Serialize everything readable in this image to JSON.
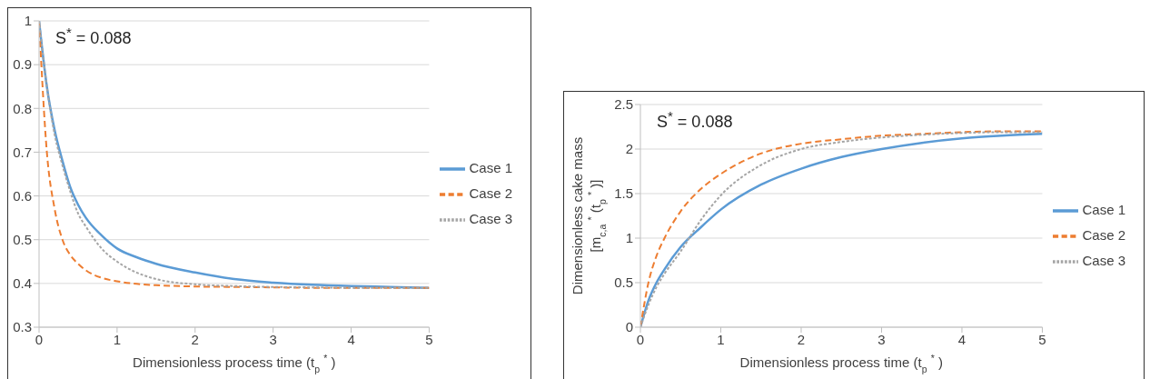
{
  "chart_data": [
    {
      "type": "line",
      "xlabel": "Dimensionless process time (t$_{p}$$^{*}$)",
      "annotations": [
        "S$^{*}$ = 0.088"
      ],
      "x": [
        0,
        0.1,
        0.2,
        0.3,
        0.4,
        0.5,
        0.6,
        0.8,
        1,
        1.25,
        1.5,
        2,
        2.5,
        3,
        3.5,
        4,
        4.5,
        5
      ],
      "series": [
        {
          "name": "Case 1",
          "color": "#5b9bd5",
          "line_style": "solid",
          "values": [
            1,
            0.85,
            0.75,
            0.68,
            0.62,
            0.58,
            0.55,
            0.51,
            0.48,
            0.46,
            0.445,
            0.425,
            0.41,
            0.402,
            0.397,
            0.394,
            0.392,
            0.39
          ]
        },
        {
          "name": "Case 2",
          "color": "#ed7d31",
          "line_style": "dashed",
          "values": [
            1,
            0.7,
            0.57,
            0.5,
            0.465,
            0.445,
            0.43,
            0.413,
            0.405,
            0.399,
            0.396,
            0.393,
            0.392,
            0.391,
            0.39,
            0.39,
            0.39,
            0.39
          ]
        },
        {
          "name": "Case 3",
          "color": "#a5a5a5",
          "line_style": "dotted",
          "values": [
            1,
            0.85,
            0.74,
            0.67,
            0.61,
            0.56,
            0.53,
            0.48,
            0.45,
            0.425,
            0.41,
            0.398,
            0.394,
            0.392,
            0.391,
            0.39,
            0.39,
            0.39
          ]
        }
      ],
      "xlim": [
        0,
        5
      ],
      "xticks": [
        0,
        1,
        2,
        3,
        4,
        5
      ],
      "ylim": [
        0.3,
        1
      ],
      "yticks": [
        0.3,
        0.4,
        0.5,
        0.6,
        0.7,
        0.8,
        0.9,
        1
      ],
      "grid": "y",
      "legend": "right",
      "marker": "none"
    },
    {
      "type": "line",
      "xlabel": "Dimensionless process time (t$_{p}$$^{*}$)",
      "ylabel": "Dimensionless cake mass [m$_{c,a}$$^{*}$(t$_{p}$$^{*}$)]",
      "annotations": [
        "S$^{*}$ = 0.088"
      ],
      "x": [
        0,
        0.1,
        0.2,
        0.3,
        0.5,
        0.75,
        1,
        1.5,
        2,
        2.5,
        3,
        3.5,
        4,
        4.5,
        5
      ],
      "series": [
        {
          "name": "Case 1",
          "color": "#5b9bd5",
          "line_style": "solid",
          "values": [
            0,
            0.3,
            0.5,
            0.65,
            0.9,
            1.12,
            1.32,
            1.6,
            1.78,
            1.91,
            2.0,
            2.07,
            2.12,
            2.15,
            2.17
          ]
        },
        {
          "name": "Case 2",
          "color": "#ed7d31",
          "line_style": "dashed",
          "values": [
            0,
            0.5,
            0.8,
            1.0,
            1.3,
            1.55,
            1.72,
            1.95,
            2.06,
            2.11,
            2.15,
            2.17,
            2.19,
            2.2,
            2.2
          ]
        },
        {
          "name": "Case 3",
          "color": "#a5a5a5",
          "line_style": "dotted",
          "values": [
            0,
            0.25,
            0.45,
            0.6,
            0.85,
            1.2,
            1.48,
            1.82,
            2.0,
            2.08,
            2.13,
            2.16,
            2.18,
            2.19,
            2.19
          ]
        }
      ],
      "xlim": [
        0,
        5
      ],
      "xticks": [
        0,
        1,
        2,
        3,
        4,
        5
      ],
      "ylim": [
        0,
        2.5
      ],
      "yticks": [
        0,
        0.5,
        1,
        1.5,
        2,
        2.5
      ],
      "grid": "y",
      "legend": "right",
      "marker": "none"
    }
  ]
}
